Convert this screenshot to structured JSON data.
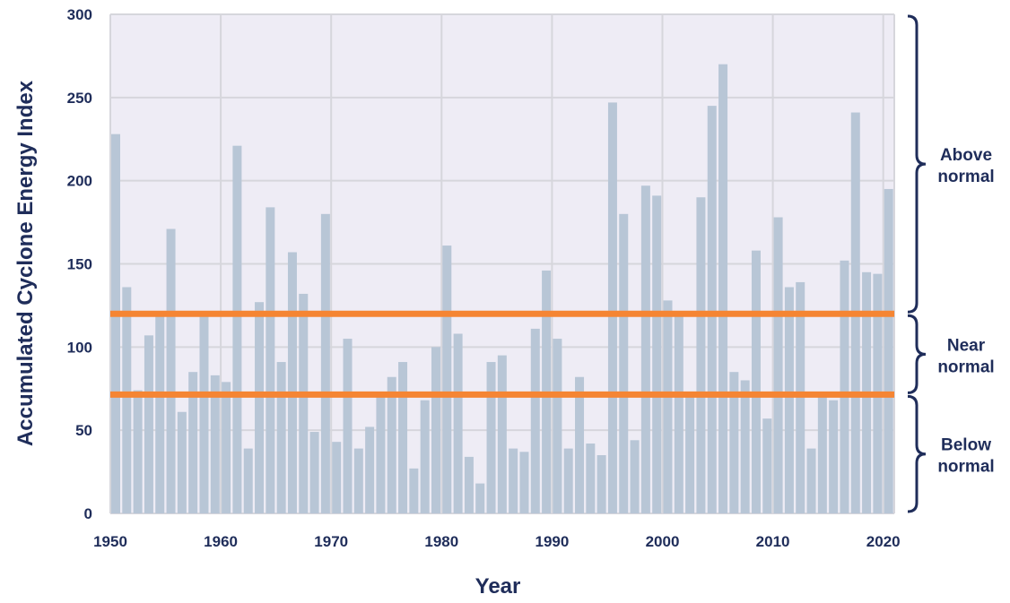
{
  "chart_data": {
    "type": "bar",
    "title": "",
    "xlabel": "Year",
    "ylabel": "Accumulated Cyclone Energy Index",
    "ylim": [
      0,
      300
    ],
    "xlim": [
      1950,
      2021
    ],
    "grid": true,
    "yticks": [
      "0",
      "50",
      "100",
      "150",
      "200",
      "250",
      "300"
    ],
    "xticks": [
      "1950",
      "1960",
      "1970",
      "1980",
      "1990",
      "2000",
      "2010",
      "2020"
    ],
    "x": [
      1950,
      1951,
      1952,
      1953,
      1954,
      1955,
      1956,
      1957,
      1958,
      1959,
      1960,
      1961,
      1962,
      1963,
      1964,
      1965,
      1966,
      1967,
      1968,
      1969,
      1970,
      1971,
      1972,
      1973,
      1974,
      1975,
      1976,
      1977,
      1978,
      1979,
      1980,
      1981,
      1982,
      1983,
      1984,
      1985,
      1986,
      1987,
      1988,
      1989,
      1990,
      1991,
      1992,
      1993,
      1994,
      1995,
      1996,
      1997,
      1998,
      1999,
      2000,
      2001,
      2002,
      2003,
      2004,
      2005,
      2006,
      2007,
      2008,
      2009,
      2010,
      2011,
      2012,
      2013,
      2014,
      2015,
      2016,
      2017,
      2018,
      2019,
      2020
    ],
    "values": [
      228,
      136,
      74,
      107,
      120,
      171,
      61,
      85,
      119,
      83,
      79,
      221,
      39,
      127,
      184,
      91,
      157,
      132,
      49,
      180,
      43,
      105,
      39,
      52,
      73,
      82,
      91,
      27,
      68,
      100,
      161,
      108,
      34,
      18,
      91,
      95,
      39,
      37,
      111,
      146,
      105,
      39,
      82,
      42,
      35,
      247,
      180,
      44,
      197,
      191,
      128,
      119,
      72,
      190,
      245,
      270,
      85,
      80,
      158,
      57,
      178,
      136,
      139,
      39,
      72,
      68,
      152,
      241,
      145,
      144,
      195
    ],
    "thresholds": [
      71.4,
      120
    ],
    "bands": [
      {
        "label_line1": "Above",
        "label_line2": "normal",
        "from": 120,
        "to": 300
      },
      {
        "label_line1": "Near",
        "label_line2": "normal",
        "from": 71.4,
        "to": 120
      },
      {
        "label_line1": "Below",
        "label_line2": "normal",
        "from": 0,
        "to": 71.4
      }
    ],
    "colors": {
      "bar": "#b8c6d6",
      "threshold": "#f58533",
      "background": "#eeecf5",
      "grid": "#d6d6dc",
      "text": "#1f2d5a"
    }
  }
}
